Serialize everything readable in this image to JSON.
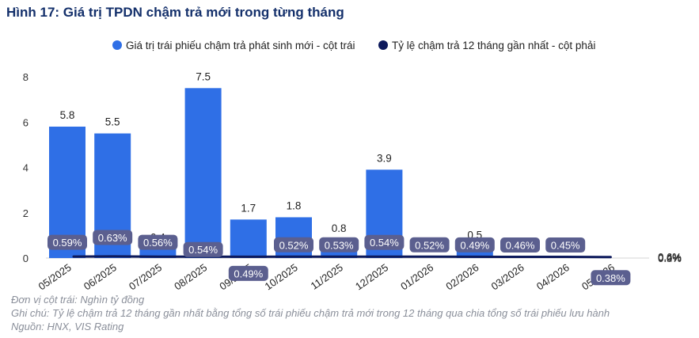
{
  "title": "Hình 17: Giá trị TPDN chậm trả mới trong từng tháng",
  "notes": {
    "unit": "Đơn vị cột trái: Nghìn tỷ đồng",
    "note": "Ghi chú: Tỷ lệ chậm trả 12 tháng gần nhất bằng tổng số trái phiếu chậm trả mới trong 12 tháng qua chia tổng số trái phiếu lưu hành",
    "source": "Nguồn: HNX, VIS Rating"
  },
  "colors": {
    "bar": "#2f6fe6",
    "line": "#0d1a5c",
    "label_box": "#5b5f8f",
    "title": "#14306b"
  },
  "chart_data": {
    "type": "bar",
    "categories": [
      "05/2025",
      "06/2025",
      "07/2025",
      "08/2025",
      "09/2025",
      "10/2025",
      "11/2025",
      "12/2025",
      "01/2026",
      "02/2026",
      "03/2026",
      "04/2026",
      "05/2026"
    ],
    "series": [
      {
        "name": "Giá trị trái phiếu chậm trả phát sinh mới - cột trái",
        "type": "bar",
        "axis": "left",
        "values": [
          5.8,
          5.5,
          0.4,
          7.5,
          1.7,
          1.8,
          0.8,
          3.9,
          null,
          0.5,
          0,
          null,
          null
        ],
        "labels": [
          "5.8",
          "5.5",
          "0.4",
          "7.5",
          "1.7",
          "1.8",
          "0.8",
          "3.9",
          "",
          "0.5",
          "0",
          "",
          ""
        ]
      },
      {
        "name": "Tỷ lệ chậm trả 12 tháng gần nhất - cột phải",
        "type": "line",
        "axis": "right",
        "values": [
          0.59,
          0.63,
          0.56,
          0.54,
          0.49,
          0.52,
          0.53,
          0.54,
          0.52,
          0.49,
          0.46,
          0.45,
          0.38
        ],
        "labels": [
          "0.59%",
          "0.63%",
          "0.56%",
          "0.54%",
          "0.49%",
          "0.52%",
          "0.53%",
          "0.54%",
          "0.52%",
          "0.49%",
          "0.46%",
          "0.45%",
          "0.38%"
        ]
      }
    ],
    "y_left": {
      "ylim": [
        0,
        8
      ],
      "ticks": [
        "0",
        "2",
        "4",
        "6",
        "8"
      ]
    },
    "y_right": {
      "ylim": [
        0,
        0.7
      ],
      "ticks": [
        "0.0%",
        "0.2%",
        "0.4%",
        "0.6%"
      ]
    },
    "legend_position": "top",
    "grid": false
  }
}
